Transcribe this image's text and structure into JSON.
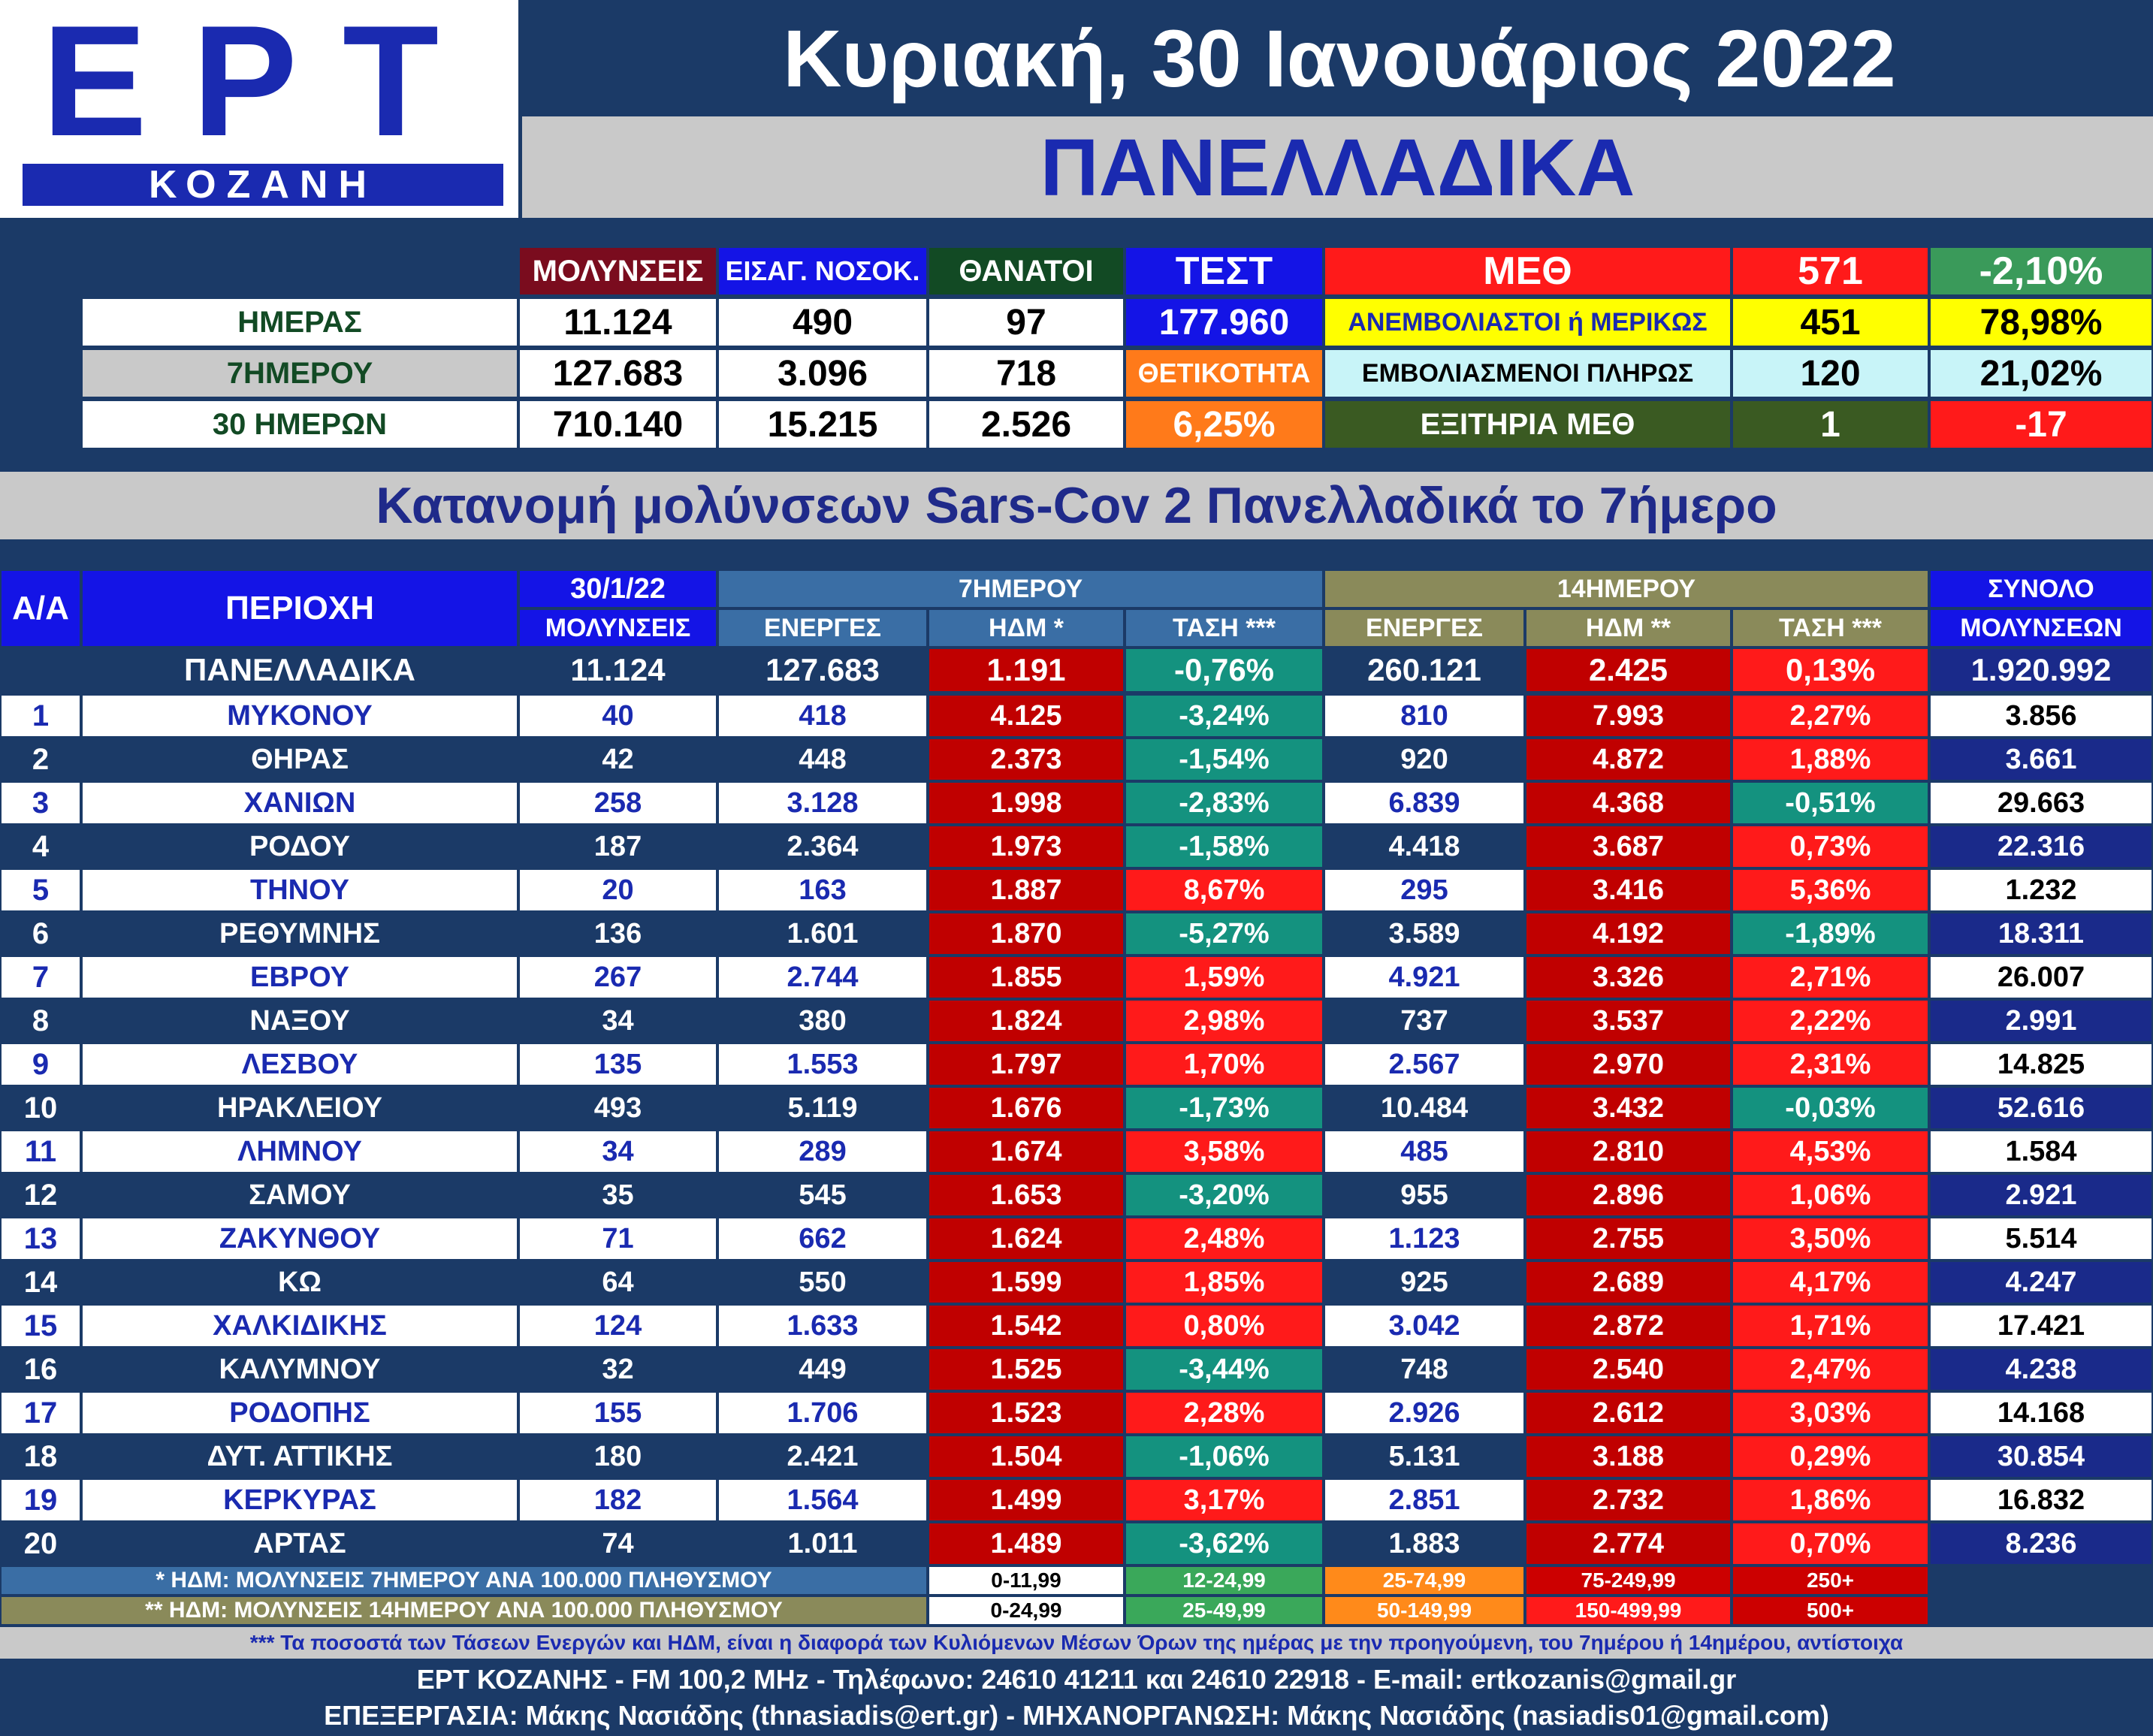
{
  "header": {
    "logo_main": "ΕΡΤ",
    "logo_sub": "ΚΟΖΑΝΗ",
    "date": "Κυριακή, 30 Ιανουάριος 2022",
    "region": "ΠΑΝΕΛΛΑΔΙΚΑ"
  },
  "summary": {
    "col_infections": "ΜΟΛΥΝΣΕΙΣ",
    "col_hospital": "ΕΙΣΑΓ. ΝΟΣΟΚ.",
    "col_deaths": "ΘΑΝΑΤΟΙ",
    "col_tests": "ΤΕΣΤ",
    "icu_label": "ΜΕΘ",
    "icu_total": "571",
    "icu_change": "-2,10%",
    "rows": [
      {
        "label": "ΗΜΕΡΑΣ",
        "infections": "11.124",
        "hospital": "490",
        "deaths": "97",
        "extra": "177.960"
      },
      {
        "label": "7ΗΜΕΡΟΥ",
        "infections": "127.683",
        "hospital": "3.096",
        "deaths": "718",
        "extra": "ΘΕΤΙΚΟΤΗΤΑ"
      },
      {
        "label": "30 ΗΜΕΡΩΝ",
        "infections": "710.140",
        "hospital": "15.215",
        "deaths": "2.526",
        "extra": "6,25%"
      }
    ],
    "icu_rows": [
      {
        "label": "ΑΝΕΜΒΟΛΙΑΣΤΟΙ ή ΜΕΡΙΚΩΣ",
        "value": "451",
        "pct": "78,98%"
      },
      {
        "label": "ΕΜΒΟΛΙΑΣΜΕΝΟΙ ΠΛΗΡΩΣ",
        "value": "120",
        "pct": "21,02%"
      },
      {
        "label": "ΕΞΙΤΗΡΙΑ ΜΕΘ",
        "value": "1",
        "pct": "-17"
      }
    ]
  },
  "distribution_title": "Κατανομή μολύνσεων Sars-Cov 2 Πανελλαδικά το 7ήμερο",
  "table": {
    "h_aa": "Α/Α",
    "h_area": "ΠΕΡΙΟΧΗ",
    "h_date": "30/1/22",
    "h_inf": "ΜΟΛΥΝΣΕΙΣ",
    "h_7": "7ΗΜΕΡΟΥ",
    "h_14": "14ΗΜΕΡΟΥ",
    "h_total": "ΣΥΝΟΛΟ",
    "h_total_sub": "ΜΟΛΥΝΣΕΩΝ",
    "h_active": "ΕΝΕΡΓΕΣ",
    "h_idm7": "ΗΔΜ *",
    "h_idm14": "ΗΔΜ **",
    "h_trend": "ΤΑΣΗ ***",
    "national": {
      "area": "ΠΑΝΕΛΛΑΔΙΚΑ",
      "day": "11.124",
      "a7": "127.683",
      "i7": "1.191",
      "t7": "-0,76%",
      "a14": "260.121",
      "i14": "2.425",
      "t14": "0,13%",
      "total": "1.920.992"
    },
    "rows": [
      {
        "aa": "1",
        "area": "ΜΥΚΟΝΟΥ",
        "day": "40",
        "a7": "418",
        "i7": "4.125",
        "t7": "-3,24%",
        "a14": "810",
        "i14": "7.993",
        "t14": "2,27%",
        "total": "3.856"
      },
      {
        "aa": "2",
        "area": "ΘΗΡΑΣ",
        "day": "42",
        "a7": "448",
        "i7": "2.373",
        "t7": "-1,54%",
        "a14": "920",
        "i14": "4.872",
        "t14": "1,88%",
        "total": "3.661"
      },
      {
        "aa": "3",
        "area": "ΧΑΝΙΩΝ",
        "day": "258",
        "a7": "3.128",
        "i7": "1.998",
        "t7": "-2,83%",
        "a14": "6.839",
        "i14": "4.368",
        "t14": "-0,51%",
        "total": "29.663"
      },
      {
        "aa": "4",
        "area": "ΡΟΔΟΥ",
        "day": "187",
        "a7": "2.364",
        "i7": "1.973",
        "t7": "-1,58%",
        "a14": "4.418",
        "i14": "3.687",
        "t14": "0,73%",
        "total": "22.316"
      },
      {
        "aa": "5",
        "area": "ΤΗΝΟΥ",
        "day": "20",
        "a7": "163",
        "i7": "1.887",
        "t7": "8,67%",
        "a14": "295",
        "i14": "3.416",
        "t14": "5,36%",
        "total": "1.232"
      },
      {
        "aa": "6",
        "area": "ΡΕΘΥΜΝΗΣ",
        "day": "136",
        "a7": "1.601",
        "i7": "1.870",
        "t7": "-5,27%",
        "a14": "3.589",
        "i14": "4.192",
        "t14": "-1,89%",
        "total": "18.311"
      },
      {
        "aa": "7",
        "area": "ΕΒΡΟΥ",
        "day": "267",
        "a7": "2.744",
        "i7": "1.855",
        "t7": "1,59%",
        "a14": "4.921",
        "i14": "3.326",
        "t14": "2,71%",
        "total": "26.007"
      },
      {
        "aa": "8",
        "area": "ΝΑΞΟΥ",
        "day": "34",
        "a7": "380",
        "i7": "1.824",
        "t7": "2,98%",
        "a14": "737",
        "i14": "3.537",
        "t14": "2,22%",
        "total": "2.991"
      },
      {
        "aa": "9",
        "area": "ΛΕΣΒΟΥ",
        "day": "135",
        "a7": "1.553",
        "i7": "1.797",
        "t7": "1,70%",
        "a14": "2.567",
        "i14": "2.970",
        "t14": "2,31%",
        "total": "14.825"
      },
      {
        "aa": "10",
        "area": "ΗΡΑΚΛΕΙΟΥ",
        "day": "493",
        "a7": "5.119",
        "i7": "1.676",
        "t7": "-1,73%",
        "a14": "10.484",
        "i14": "3.432",
        "t14": "-0,03%",
        "total": "52.616"
      },
      {
        "aa": "11",
        "area": "ΛΗΜΝΟΥ",
        "day": "34",
        "a7": "289",
        "i7": "1.674",
        "t7": "3,58%",
        "a14": "485",
        "i14": "2.810",
        "t14": "4,53%",
        "total": "1.584"
      },
      {
        "aa": "12",
        "area": "ΣΑΜΟΥ",
        "day": "35",
        "a7": "545",
        "i7": "1.653",
        "t7": "-3,20%",
        "a14": "955",
        "i14": "2.896",
        "t14": "1,06%",
        "total": "2.921"
      },
      {
        "aa": "13",
        "area": "ΖΑΚΥΝΘΟΥ",
        "day": "71",
        "a7": "662",
        "i7": "1.624",
        "t7": "2,48%",
        "a14": "1.123",
        "i14": "2.755",
        "t14": "3,50%",
        "total": "5.514"
      },
      {
        "aa": "14",
        "area": "ΚΩ",
        "day": "64",
        "a7": "550",
        "i7": "1.599",
        "t7": "1,85%",
        "a14": "925",
        "i14": "2.689",
        "t14": "4,17%",
        "total": "4.247"
      },
      {
        "aa": "15",
        "area": "ΧΑΛΚΙΔΙΚΗΣ",
        "day": "124",
        "a7": "1.633",
        "i7": "1.542",
        "t7": "0,80%",
        "a14": "3.042",
        "i14": "2.872",
        "t14": "1,71%",
        "total": "17.421"
      },
      {
        "aa": "16",
        "area": "ΚΑΛΥΜΝΟΥ",
        "day": "32",
        "a7": "449",
        "i7": "1.525",
        "t7": "-3,44%",
        "a14": "748",
        "i14": "2.540",
        "t14": "2,47%",
        "total": "4.238"
      },
      {
        "aa": "17",
        "area": "ΡΟΔΟΠΗΣ",
        "day": "155",
        "a7": "1.706",
        "i7": "1.523",
        "t7": "2,28%",
        "a14": "2.926",
        "i14": "2.612",
        "t14": "3,03%",
        "total": "14.168"
      },
      {
        "aa": "18",
        "area": "ΔΥΤ. ΑΤΤΙΚΗΣ",
        "day": "180",
        "a7": "2.421",
        "i7": "1.504",
        "t7": "-1,06%",
        "a14": "5.131",
        "i14": "3.188",
        "t14": "0,29%",
        "total": "30.854"
      },
      {
        "aa": "19",
        "area": "ΚΕΡΚΥΡΑΣ",
        "day": "182",
        "a7": "1.564",
        "i7": "1.499",
        "t7": "3,17%",
        "a14": "2.851",
        "i14": "2.732",
        "t14": "1,86%",
        "total": "16.832"
      },
      {
        "aa": "20",
        "area": "ΑΡΤΑΣ",
        "day": "74",
        "a7": "1.011",
        "i7": "1.489",
        "t7": "-3,62%",
        "a14": "1.883",
        "i14": "2.774",
        "t14": "0,70%",
        "total": "8.236"
      }
    ]
  },
  "legend": {
    "note7": "* ΗΔΜ: ΜΟΛΥΝΣΕΙΣ 7ΗΜΕΡΟΥ ΑΝΑ 100.000 ΠΛΗΘΥΣΜΟΥ",
    "note14": "** ΗΔΜ: ΜΟΛΥΝΣΕΙΣ 14ΗΜΕΡΟΥ ΑΝΑ 100.000 ΠΛΗΘΥΣΜΟΥ",
    "ranges7": [
      "0-11,99",
      "12-24,99",
      "25-74,99",
      "75-249,99",
      "250+"
    ],
    "ranges14": [
      "0-24,99",
      "25-49,99",
      "50-149,99",
      "150-499,99",
      "500+"
    ]
  },
  "footer": {
    "note": "*** Τα ποσοστά των Τάσεων Ενεργών και ΗΔΜ, είναι η διαφορά των Κυλιόμενων Μέσων Όρων της ημέρας με την προηγούμενη, του 7ημέρου ή 14ημέρου, αντίστοιχα",
    "contact": "ΕΡΤ ΚΟΖΑΝΗΣ - FM 100,2 MHz - Τηλέφωνο:  24610 41211 και 24610 22918 - E-mail: ertkozanis@gmail.gr",
    "credits": "ΕΠΕΞΕΡΓΑΣΙΑ: Μάκης Νασιάδης (thnasiadis@ert.gr) - ΜΗΧΑΝΟΡΓΑΝΩΣΗ: Μάκης Νασιάδης (nasiadis01@gmail.com)"
  },
  "colors": {
    "navy": "#1b3a67",
    "brand_blue": "#1a2ab0",
    "header_blue": "#1414e6",
    "idm_red": "#c00000",
    "trend_up": "#ff1a1a",
    "trend_down": "#14927f",
    "header_olive": "#8a8a5a",
    "header_steel": "#3a6ea5"
  }
}
